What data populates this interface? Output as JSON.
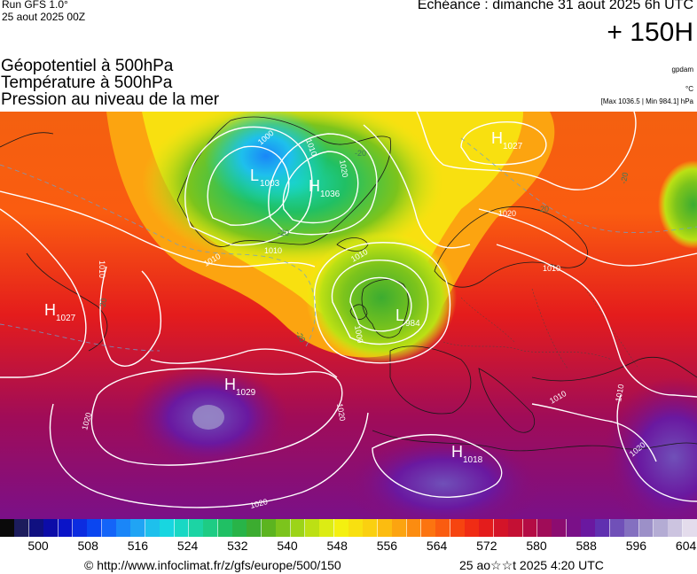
{
  "header": {
    "run": "Run GFS 1.0°",
    "run_date": "25 aout 2025 00Z",
    "echeance": "Echéance : dimanche 31 aout 2025 6h UTC",
    "horizon": "+ 150H"
  },
  "titles": {
    "line1": "Géopotentiel à 500hPa",
    "line2": "Température à 500hPa",
    "line3": "Pression au niveau de la mer"
  },
  "units": {
    "geopotential": "gpdam",
    "temperature": "°C",
    "pressure_range": "[Max 1036.5 | Min 984.1] hPa"
  },
  "centers": [
    {
      "type": "L",
      "value": "1003"
    },
    {
      "type": "H",
      "value": "1036"
    },
    {
      "type": "H",
      "value": "1027"
    },
    {
      "type": "H",
      "value": "1027"
    },
    {
      "type": "L",
      "value": "984"
    },
    {
      "type": "H",
      "value": "1029"
    },
    {
      "type": "H",
      "value": "1018"
    }
  ],
  "isobar_labels": [
    "1000",
    "1010",
    "1020",
    "1010",
    "1010",
    "1010",
    "1000",
    "1010",
    "1020",
    "1020",
    "1020",
    "1010",
    "1010",
    "1010",
    "1020",
    "1020"
  ],
  "temp_labels": [
    "-20",
    "-20",
    "-20",
    "-20",
    "-20",
    "-20"
  ],
  "scale": {
    "ticks": [
      "500",
      "508",
      "516",
      "524",
      "532",
      "540",
      "548",
      "556",
      "564",
      "572",
      "580",
      "588",
      "596",
      "604"
    ],
    "colors": [
      "#0a0a0a",
      "#1c1c5c",
      "#101080",
      "#0c0ca8",
      "#0a14c8",
      "#0c2ce0",
      "#0a46f0",
      "#1464f8",
      "#1a86f8",
      "#20a4f4",
      "#1ec0ec",
      "#18d6e0",
      "#18d8c4",
      "#1cd4a4",
      "#1ecc84",
      "#20c064",
      "#28b448",
      "#3cac30",
      "#5cb420",
      "#7cc41c",
      "#9cd418",
      "#bce014",
      "#dcec14",
      "#f4f010",
      "#f8e010",
      "#fad010",
      "#fcbc10",
      "#fca410",
      "#fc8c10",
      "#fc7410",
      "#fa5c10",
      "#f64410",
      "#f02c14",
      "#e41c1c",
      "#d41428",
      "#c41034",
      "#b40c44",
      "#a00c58",
      "#8c0c70",
      "#7a1088",
      "#6a18a0",
      "#6030b0",
      "#7050b8",
      "#8470c0",
      "#9c90c8",
      "#b4acd4",
      "#ccc4e0",
      "#e4dcec"
    ]
  },
  "footer": {
    "credit": "© http://www.infoclimat.fr/z/gfs/europe/500/150",
    "generated": "25 ao☆☆t 2025  4:20 UTC"
  }
}
